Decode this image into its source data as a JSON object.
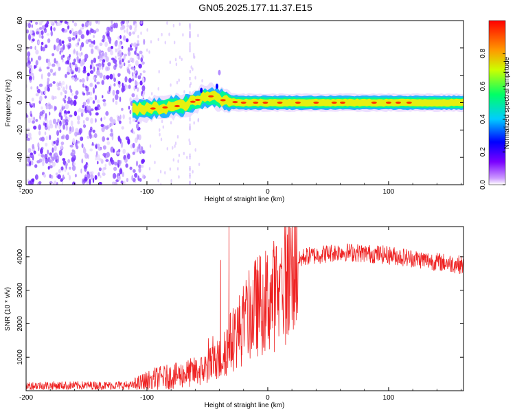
{
  "title": "GN05.2025.177.11.37.E15",
  "chart_data": [
    {
      "type": "heatmap",
      "xlabel": "Height of straight line (km)",
      "ylabel": "Frequency (Hz)",
      "xlim": [
        -200,
        162
      ],
      "ylim": [
        -60,
        60
      ],
      "x_ticks": [
        -200,
        -100,
        0,
        100
      ],
      "y_ticks": [
        -60,
        -40,
        -20,
        0,
        20,
        40,
        60
      ],
      "colorbar": {
        "label": "Normalized spectral amplitude",
        "range": [
          0,
          1
        ],
        "ticks": [
          0.0,
          0.2,
          0.4,
          0.6,
          0.8
        ],
        "colormap": [
          "#ffffff",
          "#cc99ff",
          "#7a00ff",
          "#0000ff",
          "#00ccff",
          "#00ff66",
          "#ccff00",
          "#ff9900",
          "#ff0000"
        ]
      },
      "features": {
        "noise_region_x": [
          -200,
          -108
        ],
        "band_center_hz": [
          {
            "x": -110,
            "y": -5
          },
          {
            "x": -90,
            "y": -4
          },
          {
            "x": -70,
            "y": -2
          },
          {
            "x": -55,
            "y": 3
          },
          {
            "x": -45,
            "y": 5
          },
          {
            "x": -35,
            "y": 1
          },
          {
            "x": -20,
            "y": 0
          },
          {
            "x": 0,
            "y": 0
          },
          {
            "x": 100,
            "y": 0
          },
          {
            "x": 162,
            "y": 0
          }
        ]
      }
    },
    {
      "type": "line",
      "xlabel": "Height of straight line (km)",
      "ylabel": "SNR (10 * v/v)",
      "xlim": [
        -200,
        162
      ],
      "ylim": [
        0,
        4900
      ],
      "x_ticks": [
        -200,
        -100,
        0,
        100
      ],
      "y_ticks": [
        1000,
        2000,
        3000,
        4000
      ],
      "series": [
        {
          "color": "#ee2222",
          "envelope": [
            {
              "x": -200,
              "y": 150
            },
            {
              "x": -110,
              "y": 160
            },
            {
              "x": -95,
              "y": 350
            },
            {
              "x": -75,
              "y": 450
            },
            {
              "x": -55,
              "y": 600
            },
            {
              "x": -40,
              "y": 900
            },
            {
              "x": -30,
              "y": 1500
            },
            {
              "x": -20,
              "y": 2000
            },
            {
              "x": -10,
              "y": 2500
            },
            {
              "x": 0,
              "y": 2700
            },
            {
              "x": 10,
              "y": 3000
            },
            {
              "x": 20,
              "y": 3700
            },
            {
              "x": 30,
              "y": 4000
            },
            {
              "x": 60,
              "y": 4150
            },
            {
              "x": 100,
              "y": 4050
            },
            {
              "x": 130,
              "y": 3900
            },
            {
              "x": 162,
              "y": 3750
            }
          ],
          "spikes": [
            {
              "x": -32,
              "y": 4900
            },
            {
              "x": -39,
              "y": 3900
            },
            {
              "x": -11,
              "y": 3700
            }
          ]
        }
      ]
    }
  ]
}
